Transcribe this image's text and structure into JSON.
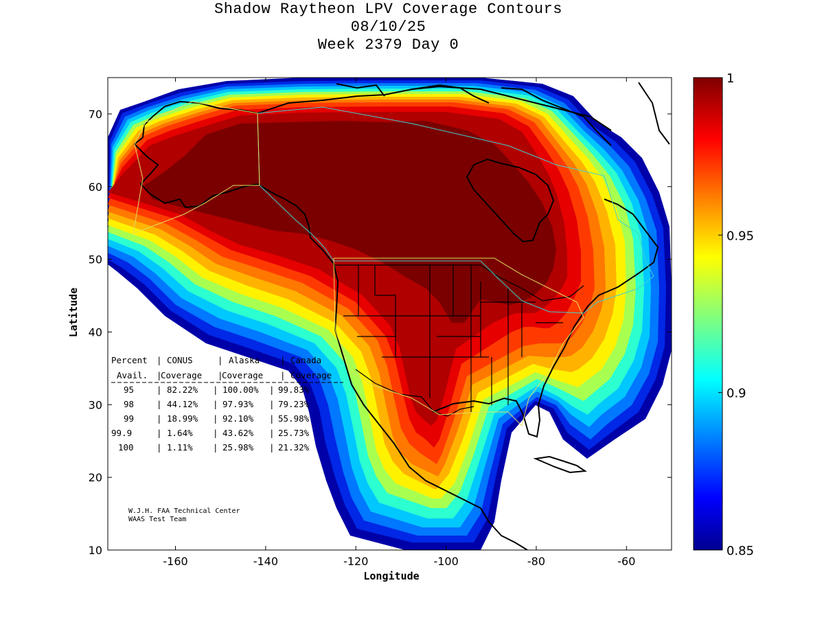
{
  "title": {
    "line1": "Shadow Raytheon LPV Coverage Contours",
    "line2": "08/10/25",
    "line3": "Week 2379 Day 0"
  },
  "axes": {
    "xlabel": "Longitude",
    "ylabel": "Latitude",
    "xlim": [
      -175,
      -50
    ],
    "ylim": [
      10,
      75
    ],
    "xticks": [
      -160,
      -140,
      -120,
      -100,
      -80,
      -60
    ],
    "yticks": [
      10,
      20,
      30,
      40,
      50,
      60,
      70
    ]
  },
  "colorbar": {
    "min": 0.85,
    "max": 1,
    "ticks": [
      "1",
      "0.95",
      "0.9",
      "0.85"
    ]
  },
  "colors": {
    "c100": "#7a0000",
    "c99": "#b00000",
    "c98": "#e60000",
    "c97": "#ff3a00",
    "c96": "#ff7800",
    "c95": "#ffb300",
    "c94": "#fff200",
    "c93": "#a8ff50",
    "c92": "#2cffd0",
    "c91": "#00c8ff",
    "c90": "#0078ff",
    "c88": "#0028e6",
    "c85": "#0000a8"
  },
  "table": {
    "header1": [
      "Percent",
      "CONUS",
      "Alaska",
      "Canada"
    ],
    "header2": [
      "Avail.",
      "Coverage",
      "Coverage",
      "Coverage"
    ],
    "rows": [
      {
        "pct": "95",
        "conus": "82.22%",
        "alaska": "100.00%",
        "canada": "99.83%"
      },
      {
        "pct": "98",
        "conus": "44.12%",
        "alaska": "97.93%",
        "canada": "79.23%"
      },
      {
        "pct": "99",
        "conus": "18.99%",
        "alaska": "92.10%",
        "canada": "55.98%"
      },
      {
        "pct": "99.9",
        "conus": "1.64%",
        "alaska": "43.62%",
        "canada": "25.73%"
      },
      {
        "pct": "100",
        "conus": "1.11%",
        "alaska": "25.98%",
        "canada": "21.32%"
      }
    ]
  },
  "credit": {
    "line1": "W.J.H. FAA Technical Center",
    "line2": "WAAS Test Team"
  }
}
